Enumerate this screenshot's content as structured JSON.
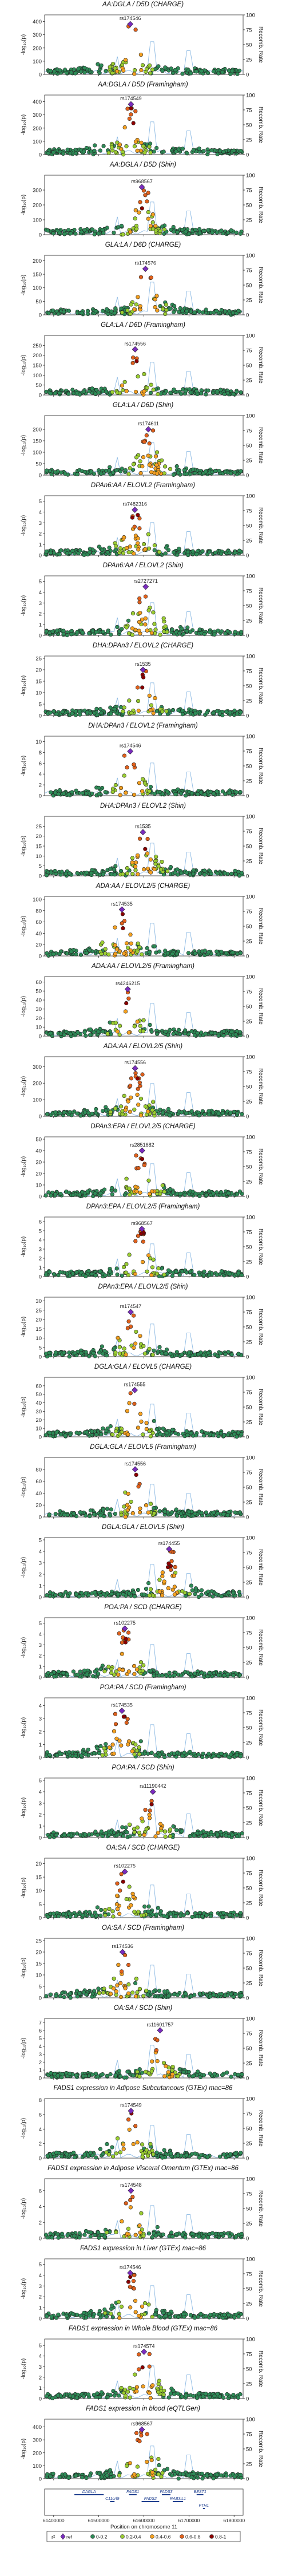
{
  "y_axis_label": "-log₁₀(p)",
  "y2_axis_label": "Recomb. Rate",
  "x_axis_label": "Position on chromosome 11",
  "x_ticks": [
    "61400000",
    "61500000",
    "61600000",
    "61700000",
    "61800000"
  ],
  "x_range": [
    61380000,
    61820000
  ],
  "y2_ticks": [
    "0",
    "25",
    "50",
    "75",
    "100"
  ],
  "lead_marker_color": "#7B2CBF",
  "ld_colors": [
    "#3DB7C9",
    "#2E8B57",
    "#9ACD32",
    "#F4A020",
    "#E0601B",
    "#8B0000"
  ],
  "legend": {
    "title": "r²",
    "entries": [
      "ref",
      "0-0.2",
      "0.2-0.4",
      "0.4-0.6",
      "0.6-0.8",
      "0.8-1"
    ]
  },
  "genes": [
    {
      "name": "DAGLA",
      "start": 61446000,
      "end": 61511000,
      "row": 0
    },
    {
      "name": "C11orf9",
      "start": 61525000,
      "end": 61535000,
      "row": 1
    },
    {
      "name": "FADS2",
      "start": 61595000,
      "end": 61634000,
      "row": 1
    },
    {
      "name": "FADS1",
      "start": 61567000,
      "end": 61584000,
      "row": 0
    },
    {
      "name": "FADS3",
      "start": 61640000,
      "end": 61659000,
      "row": 0
    },
    {
      "name": "RAB3IL1",
      "start": 61664000,
      "end": 61687000,
      "row": 1
    },
    {
      "name": "BEST1",
      "start": 61717000,
      "end": 61732000,
      "row": 0
    },
    {
      "name": "FTH1",
      "start": 61731000,
      "end": 61735000,
      "row": 2
    },
    {
      "name": "INCENP",
      "start": 61891000,
      "end": 61920000,
      "row": 2
    }
  ],
  "chart_data": [
    {
      "type": "scatter",
      "title": "AA:DGLA / D5D (CHARGE)",
      "lead_snp": "rs174546",
      "lead_pos": 61569830,
      "lead_logp": 380,
      "ylim": [
        0,
        450
      ],
      "y_ticks": [
        "0",
        "100",
        "200",
        "300",
        "400"
      ]
    },
    {
      "type": "scatter",
      "title": "AA:DGLA / D5D (Framingham)",
      "lead_snp": "rs174549",
      "lead_pos": 61571382,
      "lead_logp": 380,
      "ylim": [
        0,
        450
      ],
      "y_ticks": [
        "0",
        "100",
        "200",
        "300",
        "400"
      ]
    },
    {
      "type": "scatter",
      "title": "AA:DGLA / D5D (Shin)",
      "lead_snp": "rs968567",
      "lead_pos": 61595564,
      "lead_logp": 320,
      "ylim": [
        0,
        400
      ],
      "y_ticks": [
        "0",
        "100",
        "200",
        "300"
      ]
    },
    {
      "type": "scatter",
      "title": "GLA:LA / D6D (CHARGE)",
      "lead_snp": "rs174576",
      "lead_pos": 61603510,
      "lead_logp": 170,
      "ylim": [
        0,
        220
      ],
      "y_ticks": [
        "0",
        "50",
        "100",
        "150",
        "200"
      ]
    },
    {
      "type": "scatter",
      "title": "GLA:LA / D6D (Framingham)",
      "lead_snp": "rs174556",
      "lead_pos": 61580635,
      "lead_logp": 230,
      "ylim": [
        0,
        300
      ],
      "y_ticks": [
        "0",
        "50",
        "100",
        "150",
        "200",
        "250"
      ]
    },
    {
      "type": "scatter",
      "title": "GLA:LA / D6D (Shin)",
      "lead_snp": "rs174611",
      "lead_pos": 61610000,
      "lead_logp": 200,
      "ylim": [
        0,
        260
      ],
      "y_ticks": [
        "0",
        "50",
        "100",
        "150",
        "200"
      ]
    },
    {
      "type": "scatter",
      "title": "DPAn6:AA / ELOVL2 (Framingham)",
      "lead_snp": "rs7482316",
      "lead_pos": 61580000,
      "lead_logp": 4.2,
      "ylim": [
        0,
        5.5
      ],
      "y_ticks": [
        "0",
        "1",
        "2",
        "3",
        "4",
        "5"
      ]
    },
    {
      "type": "scatter",
      "title": "DPAn6:AA / ELOVL2 (Shin)",
      "lead_snp": "rs2727271",
      "lead_pos": 61604000,
      "lead_logp": 4.5,
      "ylim": [
        0,
        5.5
      ],
      "y_ticks": [
        "0",
        "1",
        "2",
        "3",
        "4",
        "5"
      ]
    },
    {
      "type": "scatter",
      "title": "DHA:DPAn3 / ELOVL2 (CHARGE)",
      "lead_snp": "rs1535",
      "lead_pos": 61597972,
      "lead_logp": 20,
      "ylim": [
        0,
        26
      ],
      "y_ticks": [
        "0",
        "5",
        "10",
        "15",
        "20",
        "25"
      ]
    },
    {
      "type": "scatter",
      "title": "DHA:DPAn3 / ELOVL2 (Framingham)",
      "lead_snp": "rs174546",
      "lead_pos": 61569830,
      "lead_logp": 8.2,
      "ylim": [
        0,
        11
      ],
      "y_ticks": [
        "0",
        "2",
        "4",
        "6",
        "8",
        "10"
      ]
    },
    {
      "type": "scatter",
      "title": "DHA:DPAn3 / ELOVL2 (Shin)",
      "lead_snp": "rs1535",
      "lead_pos": 61597972,
      "lead_logp": 22,
      "ylim": [
        0,
        30
      ],
      "y_ticks": [
        "0",
        "5",
        "10",
        "15",
        "20",
        "25"
      ]
    },
    {
      "type": "scatter",
      "title": "ADA:AA / ELOVL2/5 (CHARGE)",
      "lead_snp": "rs174535",
      "lead_pos": 61551356,
      "lead_logp": 82,
      "ylim": [
        0,
        105
      ],
      "y_ticks": [
        "0",
        "20",
        "40",
        "60",
        "80",
        "100"
      ]
    },
    {
      "type": "scatter",
      "title": "ADA:AA / ELOVL2/5 (Framingham)",
      "lead_snp": "rs4246215",
      "lead_pos": 61564299,
      "lead_logp": 52,
      "ylim": [
        0,
        66
      ],
      "y_ticks": [
        "0",
        "10",
        "20",
        "30",
        "40",
        "50",
        "60"
      ]
    },
    {
      "type": "scatter",
      "title": "ADA:AA / ELOVL2/5 (Shin)",
      "lead_snp": "rs174556",
      "lead_pos": 61580635,
      "lead_logp": 290,
      "ylim": [
        0,
        360
      ],
      "y_ticks": [
        "0",
        "100",
        "200",
        "300"
      ]
    },
    {
      "type": "scatter",
      "title": "DPAn3:EPA / ELOVL2/5 (CHARGE)",
      "lead_snp": "rs2851682",
      "lead_pos": 61596000,
      "lead_logp": 40,
      "ylim": [
        0,
        52
      ],
      "y_ticks": [
        "0",
        "10",
        "20",
        "30",
        "40",
        "50"
      ]
    },
    {
      "type": "scatter",
      "title": "DPAn3:EPA / ELOVL2/5 (Framingham)",
      "lead_snp": "rs968567",
      "lead_pos": 61595564,
      "lead_logp": 5.2,
      "ylim": [
        0,
        6.5
      ],
      "y_ticks": [
        "0",
        "1",
        "2",
        "3",
        "4",
        "5",
        "6"
      ]
    },
    {
      "type": "scatter",
      "title": "DPAn3:EPA / ELOVL2/5 (Shin)",
      "lead_snp": "rs174547",
      "lead_pos": 61570783,
      "lead_logp": 24,
      "ylim": [
        0,
        32
      ],
      "y_ticks": [
        "0",
        "5",
        "10",
        "15",
        "20",
        "25",
        "30"
      ]
    },
    {
      "type": "scatter",
      "title": "DGLA:GLA / ELOVL5 (CHARGE)",
      "lead_snp": "rs174555",
      "lead_pos": 61579760,
      "lead_logp": 55,
      "ylim": [
        0,
        70
      ],
      "y_ticks": [
        "0",
        "10",
        "20",
        "30",
        "40",
        "50",
        "60"
      ]
    },
    {
      "type": "scatter",
      "title": "DGLA:GLA / ELOVL5 (Framingham)",
      "lead_snp": "rs174556",
      "lead_pos": 61580635,
      "lead_logp": 80,
      "ylim": [
        0,
        100
      ],
      "y_ticks": [
        "0",
        "20",
        "40",
        "60",
        "80"
      ]
    },
    {
      "type": "scatter",
      "title": "DGLA:GLA / ELOVL5 (Shin)",
      "lead_snp": "rs174455",
      "lead_pos": 61656000,
      "lead_logp": 4.2,
      "ylim": [
        0,
        5.2
      ],
      "y_ticks": [
        "0",
        "1",
        "2",
        "3",
        "4",
        "5"
      ]
    },
    {
      "type": "scatter",
      "title": "POA:PA / SCD (CHARGE)",
      "lead_snp": "rs102275",
      "lead_pos": 61557803,
      "lead_logp": 4.5,
      "ylim": [
        0,
        5.5
      ],
      "y_ticks": [
        "0",
        "1",
        "2",
        "3",
        "4",
        "5"
      ]
    },
    {
      "type": "scatter",
      "title": "POA:PA / SCD (Framingham)",
      "lead_snp": "rs174535",
      "lead_pos": 61551356,
      "lead_logp": 3.6,
      "ylim": [
        0,
        4.6
      ],
      "y_ticks": [
        "0",
        "1",
        "2",
        "3",
        "4"
      ]
    },
    {
      "type": "scatter",
      "title": "POA:PA / SCD (Shin)",
      "lead_snp": "rs11190442",
      "lead_pos": 61620000,
      "lead_logp": 4.0,
      "ylim": [
        0,
        5.2
      ],
      "y_ticks": [
        "0",
        "1",
        "2",
        "3",
        "4",
        "5"
      ]
    },
    {
      "type": "scatter",
      "title": "OA:SA / SCD (CHARGE)",
      "lead_snp": "rs102275",
      "lead_pos": 61557803,
      "lead_logp": 17,
      "ylim": [
        0,
        22
      ],
      "y_ticks": [
        "0",
        "5",
        "10",
        "15",
        "20"
      ]
    },
    {
      "type": "scatter",
      "title": "OA:SA / SCD (Framingham)",
      "lead_snp": "rs174536",
      "lead_pos": 61552680,
      "lead_logp": 20,
      "ylim": [
        0,
        26
      ],
      "y_ticks": [
        "0",
        "5",
        "10",
        "15",
        "20",
        "25"
      ]
    },
    {
      "type": "scatter",
      "title": "OA:SA / SCD (Shin)",
      "lead_snp": "rs11601757",
      "lead_pos": 61636000,
      "lead_logp": 6.0,
      "ylim": [
        0,
        7.5
      ],
      "y_ticks": [
        "0",
        "1",
        "2",
        "3",
        "4",
        "5",
        "6",
        "7"
      ]
    },
    {
      "type": "scatter",
      "title": "FADS1 expression in Adipose Subcutaneous (GTEx) mac=86",
      "lead_snp": "rs174549",
      "lead_pos": 61571382,
      "lead_logp": 6.5,
      "ylim": [
        0,
        8.2
      ],
      "y_ticks": [
        "0",
        "2",
        "4",
        "6",
        "8"
      ]
    },
    {
      "type": "scatter",
      "title": "FADS1 expression in Adipose Visceral Omentum (GTEx) mac=86",
      "lead_snp": "rs174548",
      "lead_pos": 61571348,
      "lead_logp": 6.0,
      "ylim": [
        0,
        7.5
      ],
      "y_ticks": [
        "0",
        "2",
        "4",
        "6"
      ]
    },
    {
      "type": "scatter",
      "title": "FADS1 expression in Liver (GTEx) mac=86",
      "lead_snp": "rs174546",
      "lead_pos": 61569830,
      "lead_logp": 4.2,
      "ylim": [
        0,
        5.5
      ],
      "y_ticks": [
        "0",
        "1",
        "2",
        "3",
        "4",
        "5"
      ]
    },
    {
      "type": "scatter",
      "title": "FADS1 expression in Whole Blood (GTEx) mac=86",
      "lead_snp": "rs174574",
      "lead_pos": 61600342,
      "lead_logp": 4.4,
      "ylim": [
        0,
        5.6
      ],
      "y_ticks": [
        "0",
        "1",
        "2",
        "3",
        "4",
        "5"
      ]
    },
    {
      "type": "scatter",
      "title": "FADS1 expression in blood (eQTLGen)",
      "lead_snp": "rs968567",
      "lead_pos": 61595564,
      "lead_logp": 380,
      "ylim": [
        0,
        460
      ],
      "y_ticks": [
        "0",
        "100",
        "200",
        "300",
        "400"
      ]
    }
  ]
}
